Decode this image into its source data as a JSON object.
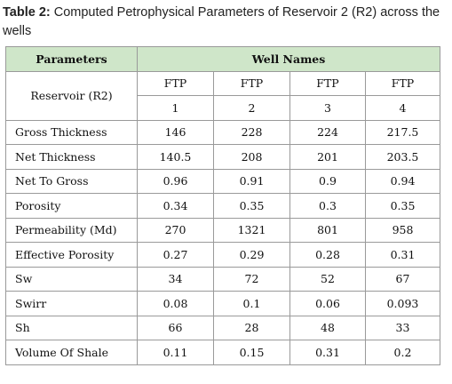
{
  "caption": {
    "label": "Table 2:",
    "text": " Computed Petrophysical Parameters of Reservoir 2 (R2) across the wells"
  },
  "table": {
    "header": {
      "parameters": "Parameters",
      "well_names": "Well Names",
      "reservoir": "Reservoir (R2)",
      "wells": [
        {
          "name": "FTP",
          "number": "1"
        },
        {
          "name": "FTP",
          "number": "2"
        },
        {
          "name": "FTP",
          "number": "3"
        },
        {
          "name": "FTP",
          "number": "4"
        }
      ]
    },
    "rows": [
      {
        "label": "Gross Thickness",
        "values": [
          "146",
          "228",
          "224",
          "217.5"
        ]
      },
      {
        "label": "Net Thickness",
        "values": [
          "140.5",
          "208",
          "201",
          "203.5"
        ]
      },
      {
        "label": "Net To Gross",
        "values": [
          "0.96",
          "0.91",
          "0.9",
          "0.94"
        ]
      },
      {
        "label": "Porosity",
        "values": [
          "0.34",
          "0.35",
          "0.3",
          "0.35"
        ]
      },
      {
        "label": "Permeability (Md)",
        "values": [
          "270",
          "1321",
          "801",
          "958"
        ]
      },
      {
        "label": "Effective Porosity",
        "values": [
          "0.27",
          "0.29",
          "0.28",
          "0.31"
        ]
      },
      {
        "label": "Sw",
        "values": [
          "34",
          "72",
          "52",
          "67"
        ]
      },
      {
        "label": "Swirr",
        "values": [
          "0.08",
          "0.1",
          "0.06",
          "0.093"
        ]
      },
      {
        "label": "Sh",
        "values": [
          "66",
          "28",
          "48",
          "33"
        ]
      },
      {
        "label": "Volume Of Shale",
        "values": [
          "0.11",
          "0.15",
          "0.31",
          "0.2"
        ]
      }
    ]
  },
  "colors": {
    "header_fill": "#cfe6c9",
    "border": "#9a9a9a"
  }
}
